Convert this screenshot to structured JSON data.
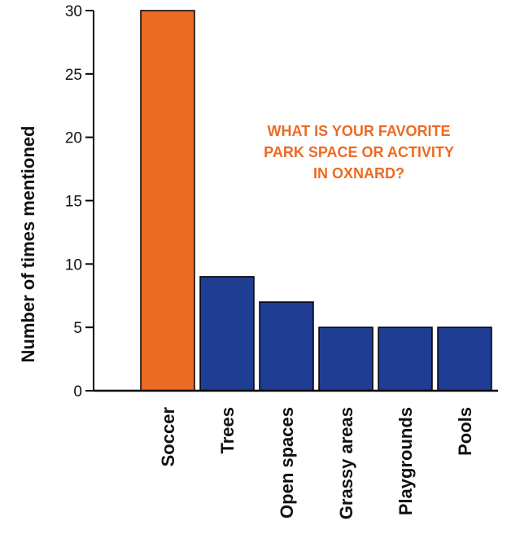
{
  "chart_data": {
    "type": "bar",
    "title_lines": [
      "WHAT IS YOUR FAVORITE",
      "PARK SPACE OR ACTIVITY",
      "IN OXNARD?"
    ],
    "ylabel": "Number of times mentioned",
    "xlabel": "",
    "categories": [
      "Soccer",
      "Trees",
      "Open spaces",
      "Grassy areas",
      "Playgrounds",
      "Pools"
    ],
    "values": [
      30,
      9,
      7,
      5,
      5,
      5
    ],
    "bar_colors": [
      "#ec6b24",
      "#1f3e93",
      "#1f3e93",
      "#1f3e93",
      "#1f3e93",
      "#1f3e93"
    ],
    "title_color": "#ec6b24",
    "ylim": [
      0,
      30
    ],
    "yticks": [
      0,
      5,
      10,
      15,
      20,
      25,
      30
    ],
    "grid": false,
    "legend": "none"
  }
}
